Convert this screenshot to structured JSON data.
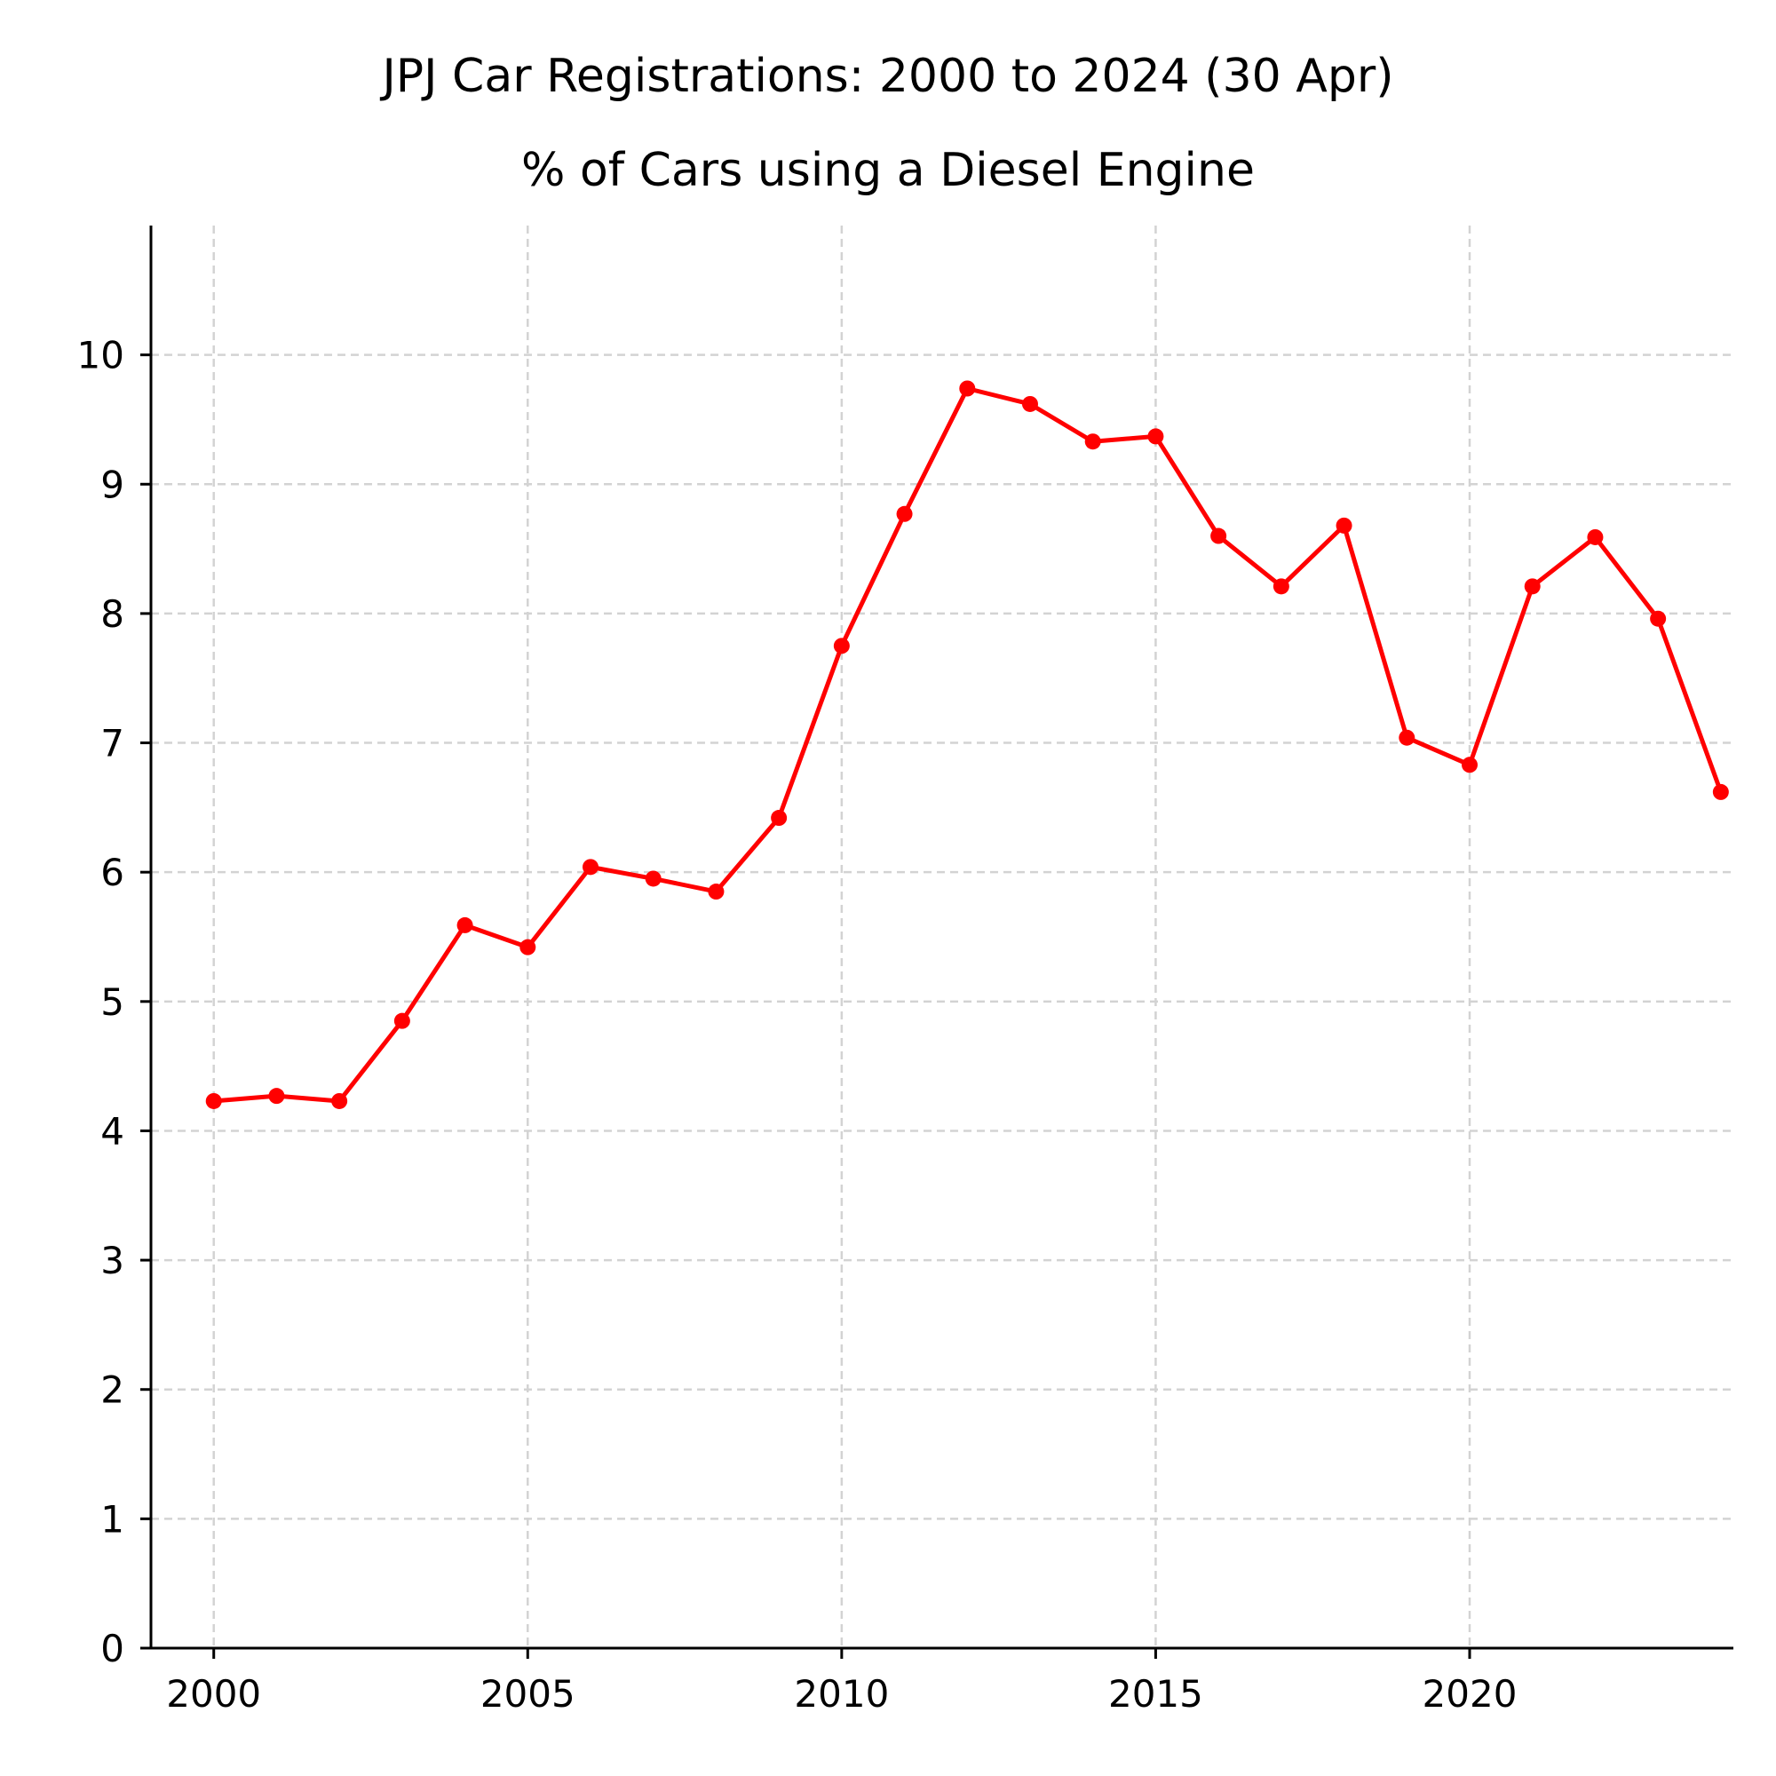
{
  "chart_data": {
    "type": "line",
    "title": "JPJ Car Registrations: 2000 to 2024 (30 Apr)",
    "subtitle": "% of Cars using a Diesel Engine",
    "xlabel": "",
    "ylabel": "",
    "xlim": [
      1999,
      2024.2
    ],
    "ylim": [
      0,
      11
    ],
    "xticks": [
      2000,
      2005,
      2010,
      2015,
      2020
    ],
    "yticks": [
      0,
      1,
      2,
      3,
      4,
      5,
      6,
      7,
      8,
      9,
      10
    ],
    "grid": true,
    "line_color": "#ff0000",
    "grid_color": "#d3d3d3",
    "series": [
      {
        "x": [
          2000,
          2001,
          2002,
          2003,
          2004,
          2005,
          2006,
          2007,
          2008,
          2009,
          2010,
          2011,
          2012,
          2013,
          2014,
          2015,
          2016,
          2017,
          2018,
          2019,
          2020,
          2021,
          2022,
          2023,
          2024
        ],
        "values": [
          4.23,
          4.27,
          4.23,
          4.85,
          5.59,
          5.42,
          6.04,
          5.95,
          5.85,
          6.42,
          7.75,
          8.77,
          9.74,
          9.62,
          9.33,
          9.37,
          8.6,
          8.21,
          8.68,
          7.04,
          6.83,
          8.21,
          8.59,
          7.96,
          6.62
        ]
      }
    ]
  }
}
